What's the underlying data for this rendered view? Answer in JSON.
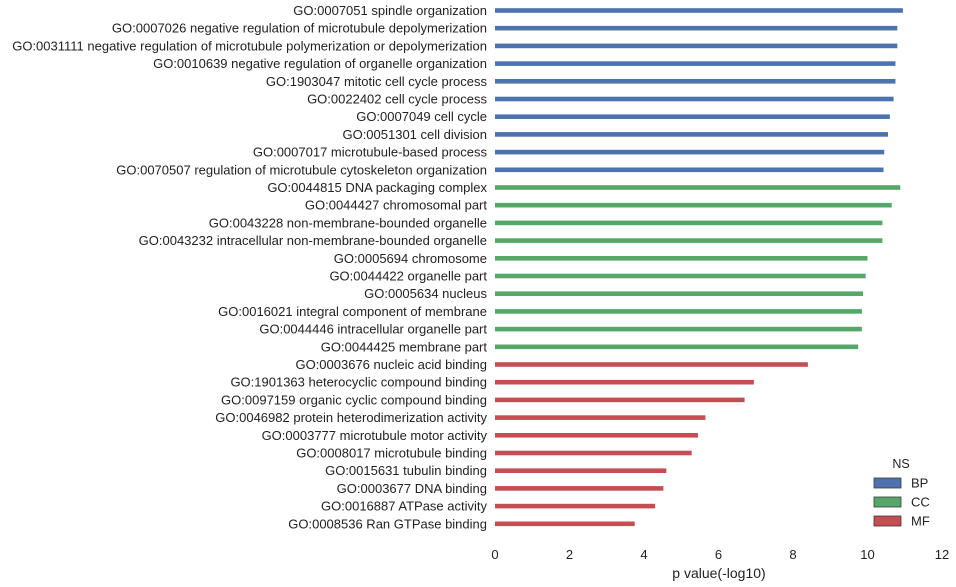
{
  "chart_data": {
    "type": "bar",
    "orientation": "horizontal",
    "xlabel": "p value(-log10)",
    "xlim": [
      0,
      12
    ],
    "xticks": [
      "0",
      "2",
      "4",
      "6",
      "8",
      "10",
      "12"
    ],
    "grid": false,
    "legend": {
      "title": "NS",
      "placement": "bottom-right",
      "entries": [
        {
          "name": "BP",
          "color": "#4c72b0"
        },
        {
          "name": "CC",
          "color": "#55a868"
        },
        {
          "name": "MF",
          "color": "#c44e52"
        }
      ]
    },
    "bars": [
      {
        "label": "GO:0007051 spindle organization",
        "value": 10.95,
        "ns": "BP"
      },
      {
        "label": "GO:0007026 negative regulation of microtubule depolymerization",
        "value": 10.8,
        "ns": "BP"
      },
      {
        "label": "GO:0031111 negative regulation of microtubule polymerization or depolymerization",
        "value": 10.8,
        "ns": "BP"
      },
      {
        "label": "GO:0010639 negative regulation of organelle organization",
        "value": 10.75,
        "ns": "BP"
      },
      {
        "label": "GO:1903047 mitotic cell cycle process",
        "value": 10.75,
        "ns": "BP"
      },
      {
        "label": "GO:0022402 cell cycle process",
        "value": 10.7,
        "ns": "BP"
      },
      {
        "label": "GO:0007049 cell cycle",
        "value": 10.6,
        "ns": "BP"
      },
      {
        "label": "GO:0051301 cell division",
        "value": 10.55,
        "ns": "BP"
      },
      {
        "label": "GO:0007017 microtubule-based process",
        "value": 10.45,
        "ns": "BP"
      },
      {
        "label": "GO:0070507 regulation of microtubule cytoskeleton organization",
        "value": 10.43,
        "ns": "BP"
      },
      {
        "label": "GO:0044815 DNA packaging complex",
        "value": 10.88,
        "ns": "CC"
      },
      {
        "label": "GO:0044427 chromosomal part",
        "value": 10.65,
        "ns": "CC"
      },
      {
        "label": "GO:0043228 non-membrane-bounded organelle",
        "value": 10.4,
        "ns": "CC"
      },
      {
        "label": "GO:0043232 intracellular non-membrane-bounded organelle",
        "value": 10.4,
        "ns": "CC"
      },
      {
        "label": "GO:0005694 chromosome",
        "value": 10.0,
        "ns": "CC"
      },
      {
        "label": "GO:0044422 organelle part",
        "value": 9.95,
        "ns": "CC"
      },
      {
        "label": "GO:0005634 nucleus",
        "value": 9.88,
        "ns": "CC"
      },
      {
        "label": "GO:0016021 integral component of membrane",
        "value": 9.85,
        "ns": "CC"
      },
      {
        "label": "GO:0044446 intracellular organelle part",
        "value": 9.85,
        "ns": "CC"
      },
      {
        "label": "GO:0044425 membrane part",
        "value": 9.75,
        "ns": "CC"
      },
      {
        "label": "GO:0003676 nucleic acid binding",
        "value": 8.4,
        "ns": "MF"
      },
      {
        "label": "GO:1901363 heterocyclic compound binding",
        "value": 6.95,
        "ns": "MF"
      },
      {
        "label": "GO:0097159 organic cyclic compound binding",
        "value": 6.7,
        "ns": "MF"
      },
      {
        "label": "GO:0046982 protein heterodimerization activity",
        "value": 5.65,
        "ns": "MF"
      },
      {
        "label": "GO:0003777 microtubule motor activity",
        "value": 5.45,
        "ns": "MF"
      },
      {
        "label": "GO:0008017 microtubule binding",
        "value": 5.28,
        "ns": "MF"
      },
      {
        "label": "GO:0015631 tubulin binding",
        "value": 4.6,
        "ns": "MF"
      },
      {
        "label": "GO:0003677 DNA binding",
        "value": 4.52,
        "ns": "MF"
      },
      {
        "label": "GO:0016887 ATPase activity",
        "value": 4.3,
        "ns": "MF"
      },
      {
        "label": "GO:0008536 Ran GTPase binding",
        "value": 3.75,
        "ns": "MF"
      }
    ]
  }
}
